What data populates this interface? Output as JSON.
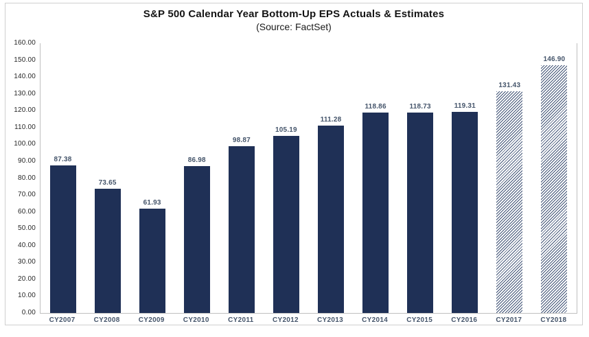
{
  "chart_data": {
    "type": "bar",
    "title": "S&P 500 Calendar Year Bottom-Up EPS Actuals & Estimates",
    "subtitle": "(Source: FactSet)",
    "categories": [
      "CY2007",
      "CY2008",
      "CY2009",
      "CY2010",
      "CY2011",
      "CY2012",
      "CY2013",
      "CY2014",
      "CY2015",
      "CY2016",
      "CY2017",
      "CY2018"
    ],
    "values": [
      87.38,
      73.65,
      61.93,
      86.98,
      98.87,
      105.19,
      111.28,
      118.86,
      118.73,
      119.31,
      131.43,
      146.9
    ],
    "value_labels": [
      "87.38",
      "73.65",
      "61.93",
      "86.98",
      "98.87",
      "105.19",
      "111.28",
      "118.86",
      "118.73",
      "119.31",
      "131.43",
      "146.90"
    ],
    "is_estimate": [
      false,
      false,
      false,
      false,
      false,
      false,
      false,
      false,
      false,
      false,
      true,
      true
    ],
    "xlabel": "",
    "ylabel": "",
    "ylim": [
      0,
      160
    ],
    "ytick_step": 10,
    "ytick_labels": [
      "160.00",
      "150.00",
      "140.00",
      "130.00",
      "120.00",
      "110.00",
      "100.00",
      "90.00",
      "80.00",
      "70.00",
      "60.00",
      "50.00",
      "40.00",
      "30.00",
      "20.00",
      "10.00",
      "0.00"
    ],
    "grid": false,
    "legend_position": "none",
    "colors": {
      "actual_bar": "#1f3056",
      "estimate_hatch": "#3e5174",
      "axis_line": "#bfbfbf",
      "figure_border": "#cfcfcf",
      "data_label": "#44546a",
      "axis_label": "#262626",
      "title": "#141414"
    }
  }
}
